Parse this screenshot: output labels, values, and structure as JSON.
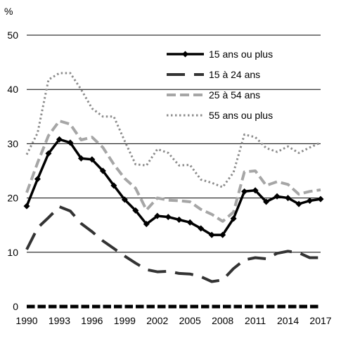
{
  "chart_data": {
    "type": "line",
    "ylabel": "%",
    "ylim": [
      0,
      50
    ],
    "xlim": [
      1990,
      2017
    ],
    "yticks": [
      "0",
      "10",
      "20",
      "30",
      "40",
      "50"
    ],
    "xticks": [
      "1990",
      "1993",
      "1996",
      "1999",
      "2002",
      "2005",
      "2008",
      "2011",
      "2014",
      "2017"
    ],
    "grid": "horizontal",
    "legend_position": "top-right",
    "x": [
      1990,
      1991,
      1992,
      1993,
      1994,
      1995,
      1996,
      1997,
      1998,
      1999,
      2000,
      2001,
      2002,
      2003,
      2004,
      2005,
      2006,
      2007,
      2008,
      2009,
      2010,
      2011,
      2012,
      2013,
      2014,
      2015,
      2016,
      2017
    ],
    "series": [
      {
        "name": "15 ans ou plus",
        "color": "#000000",
        "style": "solid-diamond",
        "values": [
          18.5,
          23.5,
          28.2,
          30.8,
          30.2,
          27.3,
          27.1,
          25.0,
          22.3,
          19.7,
          17.7,
          15.2,
          16.7,
          16.5,
          16.0,
          15.5,
          14.4,
          13.2,
          13.2,
          16.2,
          21.2,
          21.4,
          19.3,
          20.3,
          20.0,
          18.9,
          19.5,
          19.8
        ]
      },
      {
        "name": "15 à 24 ans",
        "color": "#333333",
        "style": "long-dash",
        "values": [
          10.5,
          14.5,
          16.4,
          18.4,
          17.6,
          15.3,
          13.8,
          12.1,
          10.7,
          9.3,
          8.0,
          6.8,
          6.4,
          6.5,
          6.1,
          6.0,
          5.5,
          4.6,
          4.9,
          7.0,
          8.6,
          9.0,
          8.8,
          9.8,
          10.2,
          9.9,
          9.0,
          9.0
        ]
      },
      {
        "name": "25 à 54 ans",
        "color": "#a6a6a6",
        "style": "dash",
        "values": [
          21.0,
          26.5,
          31.5,
          34.2,
          33.6,
          30.7,
          31.2,
          29.3,
          26.2,
          23.6,
          21.8,
          17.8,
          20.0,
          19.6,
          19.5,
          19.3,
          17.9,
          17.0,
          15.7,
          17.4,
          24.8,
          25.0,
          22.3,
          23.0,
          22.5,
          20.7,
          21.2,
          21.5
        ]
      },
      {
        "name": "55 ans ou plus",
        "color": "#8c8c8c",
        "style": "dot",
        "values": [
          28.0,
          32.0,
          41.8,
          43.0,
          43.0,
          40.0,
          36.5,
          35.0,
          35.0,
          30.5,
          26.2,
          26.0,
          29.0,
          28.3,
          26.0,
          26.1,
          23.4,
          22.8,
          22.0,
          24.7,
          31.7,
          31.2,
          29.2,
          28.5,
          29.5,
          28.3,
          29.3,
          30.2
        ]
      }
    ]
  }
}
